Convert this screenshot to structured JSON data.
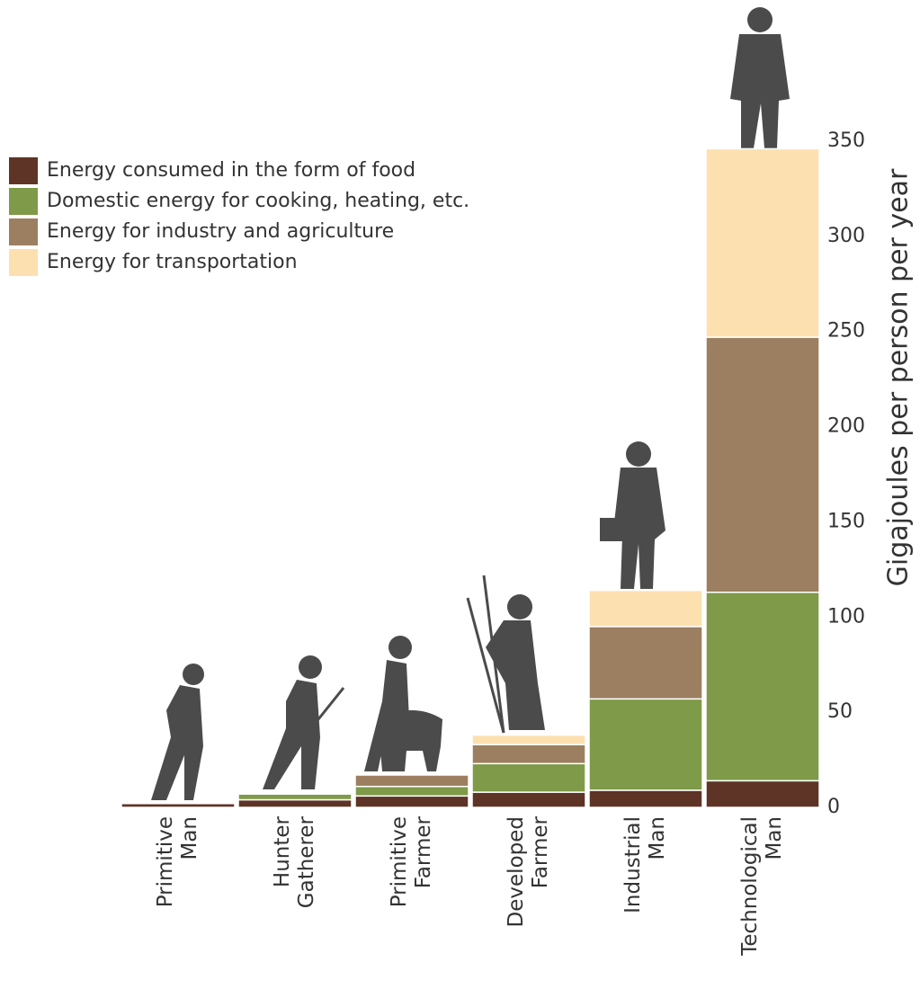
{
  "chart_data": {
    "type": "stacked_bar",
    "y_label": "Gigajoules per person per year",
    "categories": [
      "Primitive Man",
      "Hunter Gatherer",
      "Primitive Farmer",
      "Developed Farmer",
      "Industrial Man",
      "Technological Man"
    ],
    "series": [
      {
        "name": "Energy consumed in the form of food",
        "color": "#5e3426",
        "values": [
          2,
          4,
          6,
          8,
          9,
          14
        ]
      },
      {
        "name": "Domestic energy for cooking, heating, etc.",
        "color": "#7f9a48",
        "values": [
          0,
          3,
          5,
          15,
          48,
          99
        ]
      },
      {
        "name": "Energy for industry and agriculture",
        "color": "#9c7f60",
        "values": [
          0,
          0,
          6,
          10,
          38,
          134
        ]
      },
      {
        "name": "Energy for transportation",
        "color": "#fde0b0",
        "values": [
          0,
          0,
          0,
          5,
          19,
          99
        ]
      }
    ],
    "ylim": [
      0,
      350
    ],
    "yticks": [
      0,
      50,
      100,
      150,
      200,
      250,
      300,
      350
    ],
    "grid": false
  }
}
